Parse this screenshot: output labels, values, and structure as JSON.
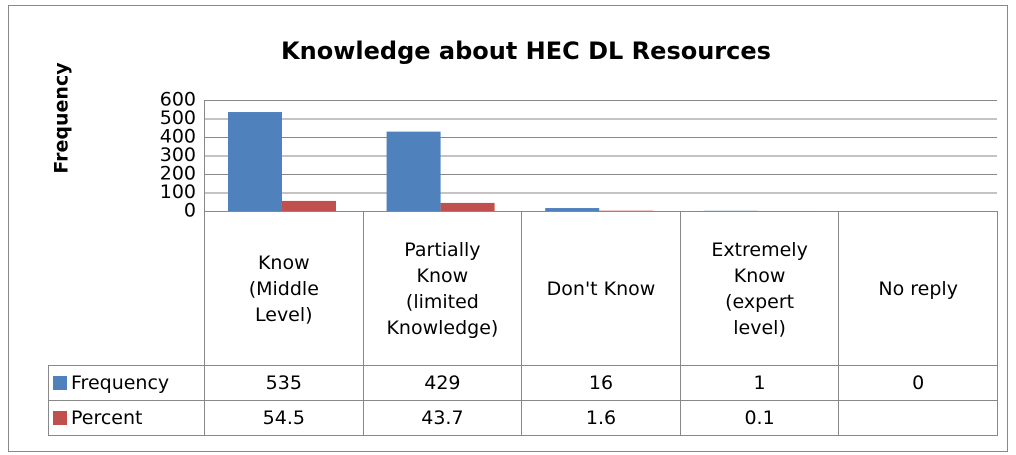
{
  "chart_data": {
    "type": "bar",
    "title": "Knowledge about HEC DL Resources",
    "y_label": "Frequency",
    "categories": [
      "Know (Middle Level)",
      "Partially Know (limited Knowledge)",
      "Don't Know",
      "Extremely Know (expert level)",
      "No reply"
    ],
    "series": [
      {
        "name": "Frequency",
        "color": "#4f81bd",
        "values": [
          535,
          429,
          16,
          1,
          0
        ]
      },
      {
        "name": "Percent",
        "color": "#c0504d",
        "values": [
          54.5,
          43.7,
          1.6,
          0.1,
          null
        ]
      }
    ],
    "ylim": [
      0,
      600
    ],
    "yticks": [
      0,
      100,
      200,
      300,
      400,
      500,
      600
    ],
    "grid": true,
    "data_table": true
  }
}
